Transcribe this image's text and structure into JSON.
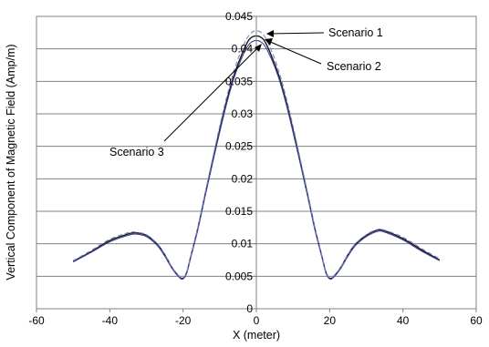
{
  "chart_data": {
    "type": "line",
    "xlabel": "X (meter)",
    "ylabel": "Vertical Component of Magnetic Field (Amp/m)",
    "xlim": [
      -60,
      60
    ],
    "ylim": [
      0,
      0.045
    ],
    "xticks": [
      "-60",
      "-40",
      "-20",
      "0",
      "20",
      "40",
      "60"
    ],
    "yticks": [
      "0",
      "0.005",
      "0.01",
      "0.015",
      "0.02",
      "0.025",
      "0.03",
      "0.035",
      "0.04",
      "0.045"
    ],
    "grid": "horizontal",
    "legend": "none",
    "annotations": [
      "Scenario 1",
      "Scenario 2",
      "Scenario 3"
    ],
    "series": [
      {
        "name": "Scenario 1",
        "color": "#1a1a1a",
        "x": [
          -50,
          -45,
          -40,
          -35,
          -33,
          -30,
          -27,
          -25,
          -23,
          -21,
          -20,
          -19,
          -18,
          -16,
          -14,
          -12,
          -10,
          -8,
          -6,
          -4,
          -2,
          0,
          2,
          4,
          6,
          8,
          10,
          12,
          14,
          16,
          18,
          19,
          20,
          21,
          23,
          25,
          27,
          30,
          33,
          35,
          40,
          45,
          50
        ],
        "y": [
          0.0073,
          0.0088,
          0.0105,
          0.0115,
          0.0117,
          0.0113,
          0.0099,
          0.0083,
          0.0063,
          0.0049,
          0.0047,
          0.0056,
          0.0078,
          0.0123,
          0.0175,
          0.0226,
          0.0276,
          0.0322,
          0.0361,
          0.0391,
          0.0414,
          0.042,
          0.0414,
          0.0391,
          0.0361,
          0.0322,
          0.0276,
          0.0226,
          0.0175,
          0.0123,
          0.0078,
          0.0056,
          0.0047,
          0.0049,
          0.0063,
          0.0083,
          0.0099,
          0.0113,
          0.0121,
          0.012,
          0.0108,
          0.0091,
          0.0075
        ]
      },
      {
        "name": "Scenario 2",
        "color": "#3a3f8f",
        "x": [
          -50,
          -45,
          -40,
          -35,
          -33,
          -30,
          -27,
          -25,
          -23,
          -21,
          -20,
          -19,
          -18,
          -16,
          -14,
          -12,
          -10,
          -8,
          -6,
          -4,
          -2,
          0,
          2,
          4,
          6,
          8,
          10,
          12,
          14,
          16,
          18,
          19,
          20,
          21,
          23,
          25,
          27,
          30,
          33,
          35,
          40,
          45,
          50
        ],
        "y": [
          0.0072,
          0.0087,
          0.0103,
          0.0113,
          0.0115,
          0.0111,
          0.0097,
          0.0081,
          0.0062,
          0.0048,
          0.0046,
          0.0055,
          0.0077,
          0.0121,
          0.0173,
          0.0223,
          0.0272,
          0.0318,
          0.0357,
          0.0386,
          0.0407,
          0.0413,
          0.0407,
          0.0386,
          0.0357,
          0.0318,
          0.0272,
          0.0223,
          0.0173,
          0.0121,
          0.0077,
          0.0055,
          0.0046,
          0.0048,
          0.0062,
          0.0081,
          0.0097,
          0.0111,
          0.0119,
          0.0118,
          0.0106,
          0.0089,
          0.0074
        ]
      },
      {
        "name": "Scenario 3",
        "color": "#7a84c4",
        "x": [
          -50,
          -45,
          -40,
          -35,
          -33,
          -30,
          -27,
          -25,
          -23,
          -21,
          -20,
          -19,
          -18,
          -16,
          -14,
          -12,
          -10,
          -8,
          -6,
          -4,
          -2,
          0,
          2,
          4,
          6,
          8,
          10,
          12,
          14,
          16,
          18,
          19,
          20,
          21,
          23,
          25,
          27,
          30,
          33,
          35,
          40,
          45,
          50
        ],
        "y": [
          0.0074,
          0.009,
          0.0107,
          0.0117,
          0.0118,
          0.0114,
          0.01,
          0.0084,
          0.0064,
          0.005,
          0.0048,
          0.0057,
          0.0079,
          0.0125,
          0.0178,
          0.023,
          0.0281,
          0.0328,
          0.0368,
          0.0399,
          0.0421,
          0.0428,
          0.0421,
          0.0399,
          0.0368,
          0.0328,
          0.0281,
          0.023,
          0.0178,
          0.0125,
          0.0079,
          0.0057,
          0.0048,
          0.005,
          0.0064,
          0.0084,
          0.01,
          0.0114,
          0.0122,
          0.0121,
          0.011,
          0.0093,
          0.0077
        ]
      }
    ]
  }
}
